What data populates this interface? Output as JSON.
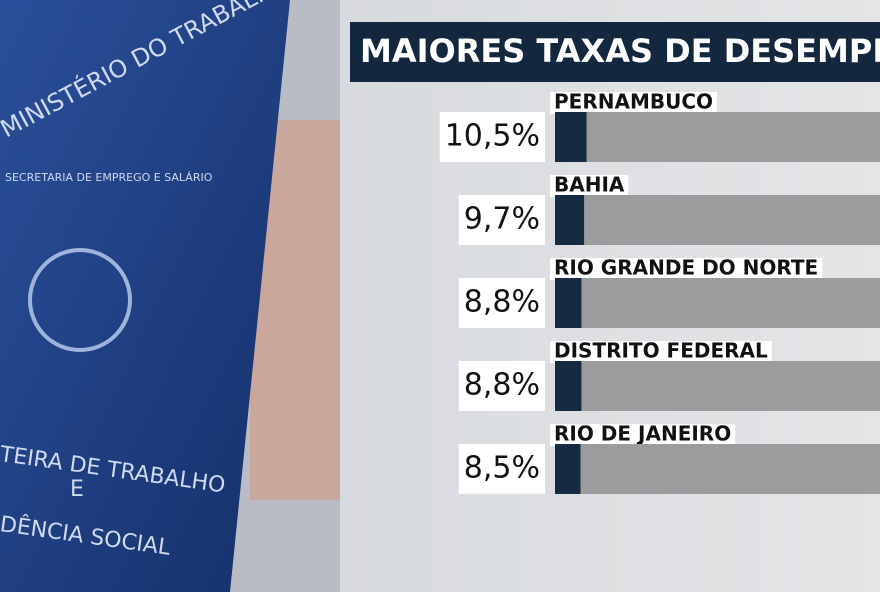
{
  "chart_data": {
    "type": "bar",
    "orientation": "horizontal",
    "title": "MAIORES TAXAS DE DESEMPRE",
    "categories": [
      "PERNAMBUCO",
      "BAHIA",
      "RIO GRANDE DO NORTE",
      "DISTRITO FEDERAL",
      "RIO DE JANEIRO"
    ],
    "values": [
      10.5,
      9.7,
      8.8,
      8.8,
      8.5
    ],
    "value_labels": [
      "10,5%",
      "9,7%",
      "8,8%",
      "8,8%",
      "8,5%"
    ],
    "color": "#162a42"
  },
  "photo": {
    "texts": [
      "MINISTÉRIO DO TRABALHO",
      "SECRETARIA DE EMPREGO E SALÁRIO",
      "TEIRA DE TRABALHO",
      "E",
      "DÊNCIA SOCIAL"
    ]
  }
}
